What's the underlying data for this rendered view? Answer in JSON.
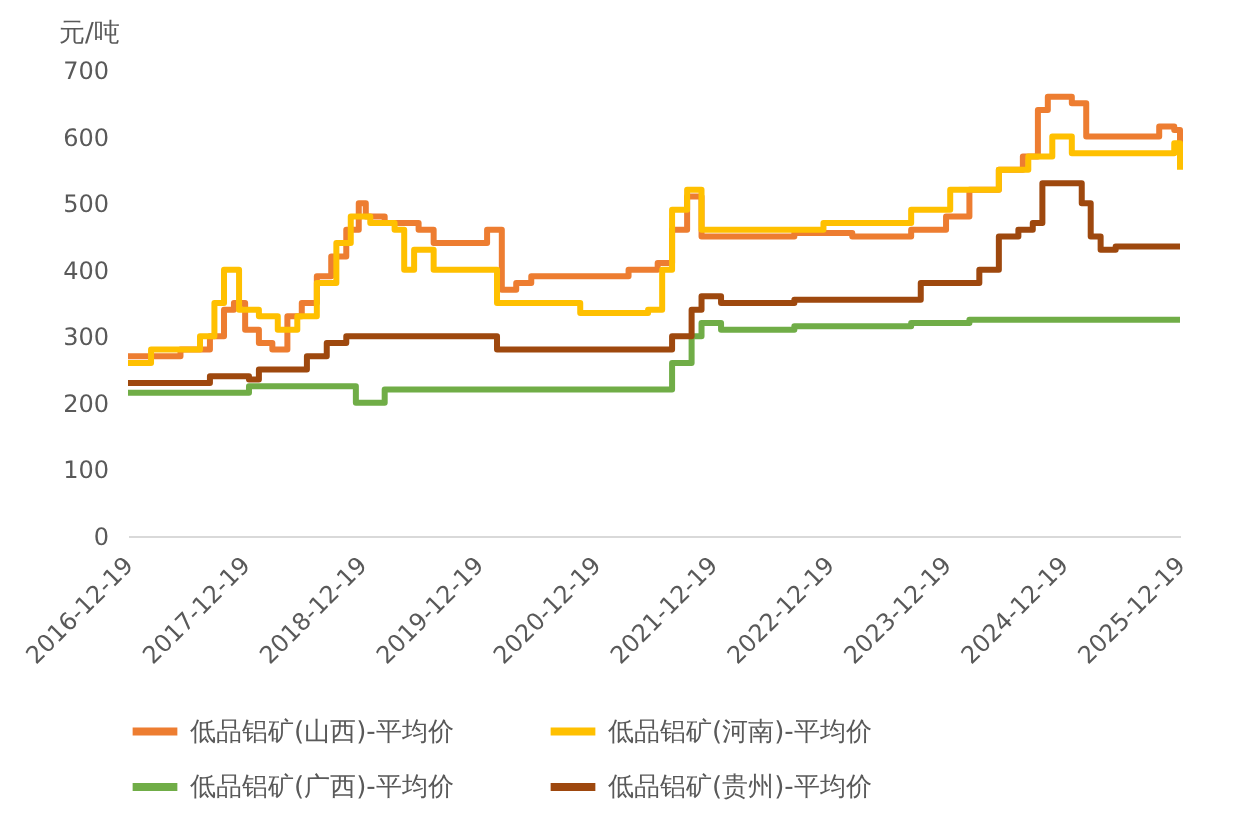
{
  "chart_data": {
    "type": "step",
    "ylabel": "元/吨",
    "xlim": [
      "2016-12-19",
      "2025-12-19"
    ],
    "xticks": [
      "2016-12-19",
      "2017-12-19",
      "2018-12-19",
      "2019-12-19",
      "2020-12-19",
      "2021-12-19",
      "2022-12-19",
      "2023-12-19",
      "2024-12-19",
      "2025-12-19"
    ],
    "ylim": [
      0,
      700
    ],
    "yticks": [
      0,
      100,
      200,
      300,
      400,
      500,
      600,
      700
    ],
    "grid": false,
    "legend": "bottom",
    "line_style": "solid",
    "marker": "none",
    "series": [
      {
        "name": "低品铝矿(山西)-平均价",
        "color": "#ed7d31",
        "x": [
          "2016-12-19",
          "2017-06-01",
          "2017-09-01",
          "2017-10-15",
          "2017-11-15",
          "2017-12-20",
          "2018-02-01",
          "2018-03-15",
          "2018-05-01",
          "2018-06-15",
          "2018-08-01",
          "2018-09-15",
          "2018-11-01",
          "2018-12-10",
          "2019-01-01",
          "2019-03-01",
          "2019-06-15",
          "2019-08-01",
          "2020-01-15",
          "2020-03-01",
          "2020-04-15",
          "2020-06-01",
          "2021-04-01",
          "2021-07-01",
          "2021-08-15",
          "2021-10-01",
          "2021-11-15",
          "2022-06-01",
          "2022-09-01",
          "2023-03-01",
          "2023-09-01",
          "2023-12-19",
          "2024-03-01",
          "2024-06-01",
          "2024-08-15",
          "2024-10-01",
          "2024-11-01",
          "2025-01-15",
          "2025-03-01",
          "2025-06-01",
          "2025-10-15",
          "2025-12-01",
          "2025-12-19"
        ],
        "values": [
          270,
          280,
          300,
          340,
          350,
          310,
          290,
          280,
          330,
          350,
          390,
          420,
          460,
          500,
          480,
          470,
          460,
          440,
          460,
          370,
          380,
          390,
          400,
          410,
          460,
          510,
          450,
          450,
          455,
          450,
          460,
          480,
          520,
          550,
          570,
          640,
          660,
          650,
          600,
          600,
          615,
          610,
          590
        ]
      },
      {
        "name": "低品铝矿(河南)-平均价",
        "color": "#ffc000",
        "x": [
          "2016-12-19",
          "2017-03-01",
          "2017-08-01",
          "2017-09-15",
          "2017-10-15",
          "2017-12-01",
          "2018-02-01",
          "2018-04-01",
          "2018-06-01",
          "2018-08-01",
          "2018-10-01",
          "2018-11-15",
          "2019-01-15",
          "2019-04-01",
          "2019-05-01",
          "2019-06-01",
          "2019-08-01",
          "2020-01-15",
          "2020-02-15",
          "2020-11-01",
          "2021-06-01",
          "2021-07-15",
          "2021-08-15",
          "2021-10-01",
          "2021-11-15",
          "2022-12-01",
          "2023-06-01",
          "2023-09-01",
          "2024-01-01",
          "2024-06-01",
          "2024-09-01",
          "2024-11-15",
          "2025-01-15",
          "2025-10-01",
          "2025-12-01",
          "2025-12-19"
        ],
        "values": [
          260,
          280,
          300,
          350,
          400,
          340,
          330,
          310,
          330,
          380,
          440,
          480,
          470,
          460,
          400,
          430,
          400,
          400,
          350,
          335,
          340,
          400,
          490,
          520,
          460,
          470,
          470,
          490,
          520,
          550,
          570,
          600,
          575,
          575,
          590,
          550
        ]
      },
      {
        "name": "低品铝矿(广西)-平均价",
        "color": "#70ad47",
        "x": [
          "2016-12-19",
          "2018-01-01",
          "2018-12-01",
          "2019-03-01",
          "2021-07-15",
          "2021-08-15",
          "2021-10-15",
          "2021-11-15",
          "2022-01-15",
          "2022-09-01",
          "2023-09-01",
          "2024-03-01",
          "2025-12-19"
        ],
        "values": [
          215,
          225,
          200,
          220,
          220,
          260,
          300,
          320,
          310,
          315,
          320,
          325,
          325
        ]
      },
      {
        "name": "低品铝矿(贵州)-平均价",
        "color": "#9e480e",
        "x": [
          "2016-12-19",
          "2017-09-01",
          "2018-01-01",
          "2018-02-01",
          "2018-07-01",
          "2018-09-01",
          "2018-11-01",
          "2020-01-15",
          "2020-02-15",
          "2021-07-15",
          "2021-08-15",
          "2021-10-15",
          "2021-11-15",
          "2022-01-15",
          "2022-09-01",
          "2023-10-01",
          "2024-04-01",
          "2024-06-01",
          "2024-08-01",
          "2024-09-15",
          "2024-10-15",
          "2025-01-20",
          "2025-02-15",
          "2025-03-15",
          "2025-04-15",
          "2025-06-01",
          "2025-12-19"
        ],
        "values": [
          230,
          240,
          235,
          250,
          270,
          290,
          300,
          300,
          280,
          280,
          300,
          340,
          360,
          350,
          355,
          380,
          400,
          450,
          460,
          470,
          530,
          530,
          500,
          450,
          430,
          435,
          435
        ]
      }
    ]
  }
}
